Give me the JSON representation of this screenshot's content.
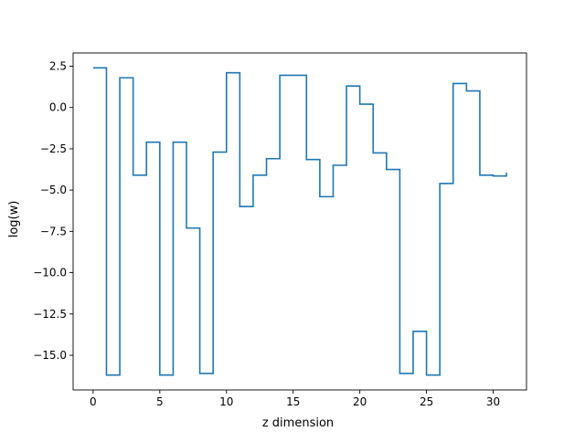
{
  "chart_data": {
    "type": "line",
    "drawstyle": "steps-post",
    "title": "",
    "xlabel": "z dimension",
    "ylabel": "log(w)",
    "xlim": [
      -1.5,
      32.5
    ],
    "ylim": [
      -17.1,
      3.3
    ],
    "xticks": [
      0,
      5,
      10,
      15,
      20,
      25,
      30
    ],
    "xtick_labels": [
      "0",
      "5",
      "10",
      "15",
      "20",
      "25",
      "30"
    ],
    "yticks": [
      2.5,
      0.0,
      -2.5,
      -5.0,
      -7.5,
      -10.0,
      -12.5,
      -15.0
    ],
    "ytick_labels": [
      "2.5",
      "0.0",
      "−2.5",
      "−5.0",
      "−7.5",
      "−10.0",
      "−12.5",
      "−15.0"
    ],
    "grid": false,
    "legend": false,
    "series": [
      {
        "color": "#1f77b4",
        "x": [
          0,
          1,
          2,
          3,
          4,
          5,
          6,
          7,
          8,
          9,
          10,
          11,
          12,
          13,
          14,
          15,
          16,
          17,
          18,
          19,
          20,
          21,
          22,
          23,
          24,
          25,
          26,
          27,
          28,
          29,
          30,
          31
        ],
        "values": [
          2.4,
          -16.2,
          1.8,
          -4.1,
          -2.1,
          -16.2,
          -2.1,
          -7.3,
          -16.1,
          -2.7,
          2.1,
          -6.0,
          -4.1,
          -3.1,
          1.95,
          1.95,
          -3.15,
          -5.4,
          -3.5,
          1.3,
          0.2,
          -2.75,
          -3.75,
          -16.1,
          -13.55,
          -16.2,
          -4.6,
          1.45,
          1.0,
          -4.1,
          -4.15,
          -3.95
        ]
      }
    ]
  }
}
